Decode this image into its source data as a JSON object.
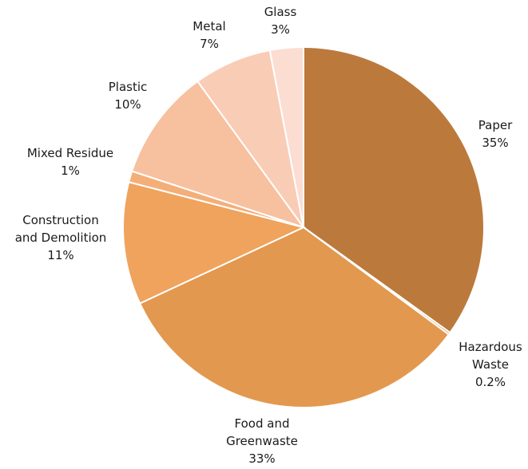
{
  "chart_data": {
    "type": "pie",
    "title": "",
    "categories": [
      "Paper",
      "Hazardous Waste",
      "Food and Greenwaste",
      "Construction and Demolition",
      "Mixed Residue",
      "Plastic",
      "Metal",
      "Glass"
    ],
    "values": [
      35,
      0.2,
      33,
      11,
      1,
      10,
      7,
      3
    ],
    "value_labels": [
      "35%",
      "0.2%",
      "33%",
      "11%",
      "1%",
      "10%",
      "7%",
      "3%"
    ],
    "label_lines": [
      [
        "Paper",
        "35%"
      ],
      [
        "Hazardous",
        "Waste",
        "0.2%"
      ],
      [
        "Food and",
        "Greenwaste",
        "33%"
      ],
      [
        "Construction",
        "and Demolition",
        "11%"
      ],
      [
        "Mixed Residue",
        "1%"
      ],
      [
        "Plastic",
        "10%"
      ],
      [
        "Metal",
        "7%"
      ],
      [
        "Glass",
        "3%"
      ]
    ],
    "colors": [
      "#bb7a3c",
      "#d28d4c",
      "#e3984f",
      "#efa35c",
      "#f4ae78",
      "#f7c09e",
      "#f9ccb6",
      "#fbddd2"
    ],
    "start_angle": "12 o'clock",
    "direction": "clockwise",
    "legend": "none"
  }
}
